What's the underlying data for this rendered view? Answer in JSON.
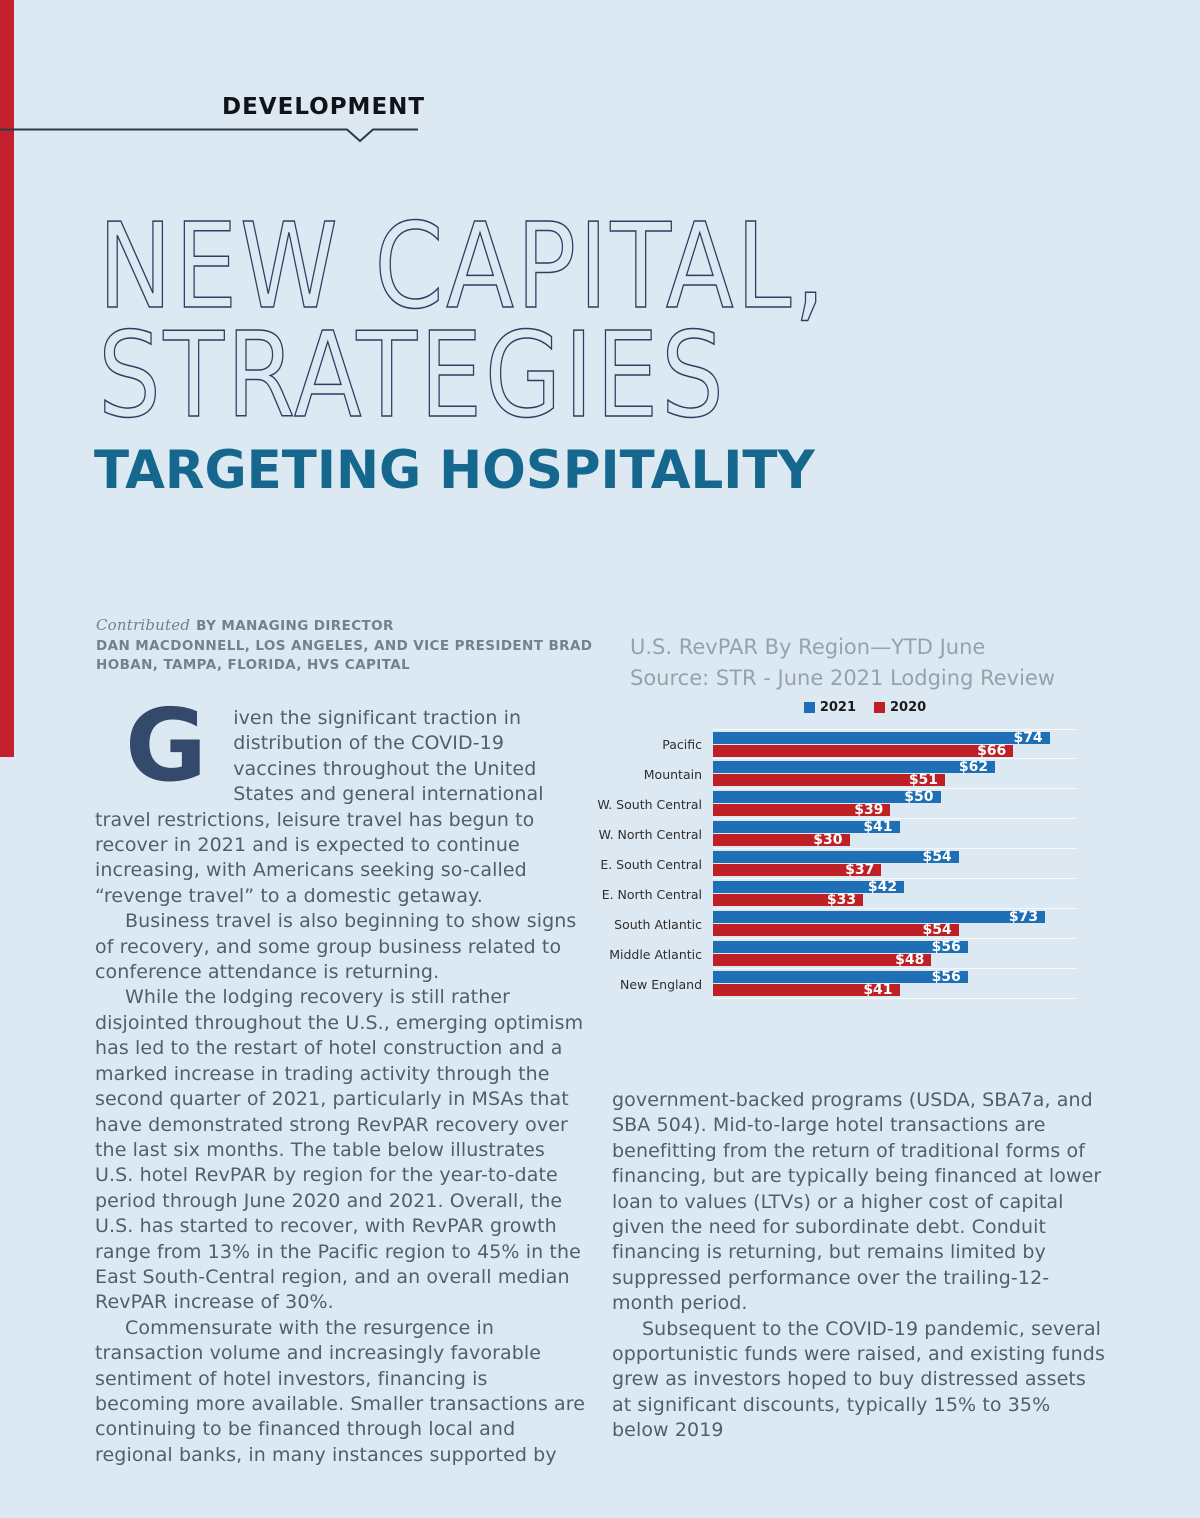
{
  "page": {
    "kicker": "DEVELOPMENT"
  },
  "title": {
    "line1": "NEW CAPITAL,",
    "line2": "STRATEGIES",
    "subtitle": "TARGETING HOSPITALITY"
  },
  "byline": {
    "contributed": "Contributed",
    "line1": "BY MANAGING DIRECTOR",
    "line2": "DAN MACDONNELL, LOS ANGELES, AND VICE PRESIDENT BRAD",
    "line3": "HOBAN, TAMPA, FLORIDA, HVS CAPITAL"
  },
  "chart_header": {
    "title": "U.S. RevPAR By Region—YTD June",
    "source": "Source: STR - June 2021 Lodging Review"
  },
  "chart_data": {
    "type": "bar",
    "orientation": "horizontal",
    "title": "U.S. RevPAR By Region—YTD June",
    "subtitle": "Source: STR - June 2021 Lodging Review",
    "categories": [
      "Pacific",
      "Mountain",
      "W. South Central",
      "W. North Central",
      "E. South Central",
      "E. North Central",
      "South Atlantic",
      "Middle Atlantic",
      "New England"
    ],
    "series": [
      {
        "name": "2021",
        "color": "#1e6fb5",
        "values": [
          74,
          62,
          50,
          41,
          54,
          42,
          73,
          56,
          56
        ]
      },
      {
        "name": "2020",
        "color": "#be2026",
        "values": [
          66,
          51,
          39,
          30,
          37,
          33,
          54,
          48,
          41
        ]
      }
    ],
    "value_prefix": "$",
    "xlim": [
      0,
      80
    ],
    "grid": "horizontal band separators",
    "legend_position": "top-center"
  },
  "article": {
    "drop_cap": "G",
    "col_left": [
      {
        "indent": false,
        "drop": true,
        "text": "iven the significant traction in distribution of the COVID-19 vaccines throughout the United States and general international travel restrictions, leisure travel has begun to recover in 2021 and is expected to continue increasing, with Americans seeking so-called “revenge travel” to a domestic getaway."
      },
      {
        "indent": true,
        "drop": false,
        "text": "Business travel is also beginning to show signs of recovery, and some group business related to conference attendance is returning."
      },
      {
        "indent": true,
        "drop": false,
        "text": "While the lodging recovery is still rather disjointed throughout the U.S., emerging optimism has led to the restart of hotel construction and a marked increase in trading activity through the second quarter of 2021, particularly in MSAs that have demonstrated strong RevPAR recovery over the last six months. The table below illustrates U.S. hotel RevPAR by region for the year-to-date period through June 2020 and 2021. Overall, the U.S. has started to recover, with RevPAR growth range from 13% in the Pacific region to 45% in the East South-Central region, and an overall median RevPAR increase of 30%."
      },
      {
        "indent": true,
        "drop": false,
        "text": "Commensurate with the resurgence in transaction volume and increasingly favorable sentiment of hotel investors, financing is becoming more available. Smaller transactions are continuing to be financed through local and regional banks, in many instances supported by"
      }
    ],
    "col_right": [
      {
        "indent": false,
        "drop": false,
        "text": "government-backed programs (USDA, SBA7a, and SBA 504). Mid-to-large hotel transactions are benefitting from the return of traditional forms of financing, but are typically being financed at lower loan to values (LTVs) or a higher cost of capital given the need for subordinate debt. Conduit financing is returning, but remains limited by suppressed performance over the trailing-12-month period."
      },
      {
        "indent": true,
        "drop": false,
        "text": "Subsequent to the COVID-19 pandemic, several opportunistic funds were raised, and existing funds grew as investors hoped to buy distressed assets at significant discounts, typically 15% to 35% below 2019"
      }
    ]
  },
  "colors": {
    "background": "#dde9f2",
    "accent_red": "#c5202e",
    "title_navy": "#2a3f63",
    "subtitle_teal": "#15678e",
    "body_text": "#4e5f6e",
    "bar_blue_2021": "#1e6fb5",
    "bar_red_2020": "#be2026"
  }
}
